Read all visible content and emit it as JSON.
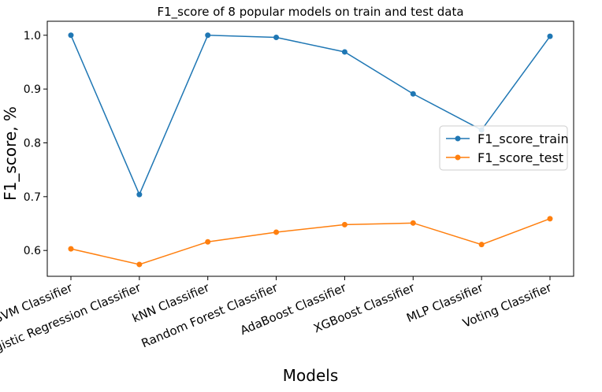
{
  "chart_data": {
    "type": "line",
    "title": "F1_score of 8 popular models on train and test data",
    "xlabel": "Models",
    "ylabel": "F1_score, %",
    "categories": [
      "SVM Classifier",
      "Logistic Regression Classifier",
      "kNN Classifier",
      "Random Forest Classifier",
      "AdaBoost Classifier",
      "XGBoost Classifier",
      "MLP Classifier",
      "Voting Classifier"
    ],
    "series": [
      {
        "name": "F1_score_train",
        "color": "#1f77b4",
        "values": [
          1.0,
          0.704,
          1.0,
          0.996,
          0.969,
          0.891,
          0.824,
          0.998
        ]
      },
      {
        "name": "F1_score_test",
        "color": "#ff7f0e",
        "values": [
          0.603,
          0.574,
          0.616,
          0.634,
          0.648,
          0.651,
          0.611,
          0.659
        ]
      }
    ],
    "ylim": [
      0.552,
      1.026
    ],
    "yticks": [
      0.6,
      0.7,
      0.8,
      0.9,
      1.0
    ],
    "ytick_labels": [
      "0.6",
      "0.7",
      "0.8",
      "0.9",
      "1.0"
    ],
    "grid": false,
    "legend_position": "center-right"
  }
}
